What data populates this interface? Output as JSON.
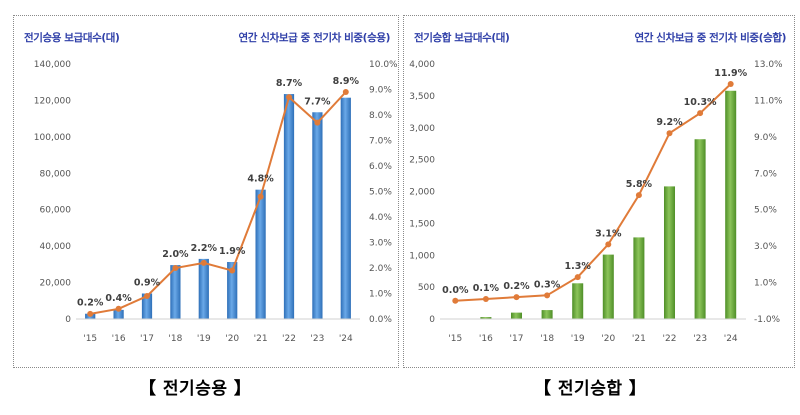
{
  "captions": {
    "left": "【 전기승용 】",
    "right": "【 전기승합 】"
  },
  "chart_data": [
    {
      "type": "bar",
      "left_title": "전기승용 보급대수(대)",
      "right_title": "연간 신차보급 중 전기차 비중(승용)",
      "categories": [
        "'15",
        "'16",
        "'17",
        "'18",
        "'19",
        "'20",
        "'21",
        "'22",
        "'23",
        "'24"
      ],
      "series": [
        {
          "name": "전기승용 보급대수(대)",
          "type": "bar",
          "axis": "left",
          "color": "#4a8fd6",
          "values": [
            2900,
            5000,
            14000,
            29600,
            33000,
            31300,
            71000,
            123500,
            113500,
            121500
          ]
        },
        {
          "name": "연간 신차보급 중 전기차 비중(승용)",
          "type": "line",
          "axis": "right",
          "color": "#e07b39",
          "values": [
            0.2,
            0.4,
            0.9,
            2.0,
            2.2,
            1.9,
            4.8,
            8.7,
            7.7,
            8.9
          ],
          "labels": [
            "0.2%",
            "0.4%",
            "0.9%",
            "2.0%",
            "2.2%",
            "1.9%",
            "4.8%",
            "8.7%",
            "7.7%",
            "8.9%"
          ]
        }
      ],
      "y_left": {
        "min": 0,
        "max": 140000,
        "ticks": [
          "0",
          "20,000",
          "40,000",
          "60,000",
          "80,000",
          "100,000",
          "120,000",
          "140,000"
        ]
      },
      "y_right": {
        "min": 0,
        "max": 10,
        "ticks": [
          "0.0%",
          "1.0%",
          "2.0%",
          "3.0%",
          "4.0%",
          "5.0%",
          "6.0%",
          "7.0%",
          "8.0%",
          "9.0%",
          "10.0%"
        ]
      },
      "grid": false
    },
    {
      "type": "bar",
      "left_title": "전기승합 보급대수(대)",
      "right_title": "연간 신차보급 중 전기차 비중(승합)",
      "categories": [
        "'15",
        "'16",
        "'17",
        "'18",
        "'19",
        "'20",
        "'21",
        "'22",
        "'23",
        "'24"
      ],
      "series": [
        {
          "name": "전기승합 보급대수(대)",
          "type": "bar",
          "axis": "left",
          "color": "#6aaa3a",
          "values": [
            5,
            30,
            100,
            140,
            560,
            1010,
            1280,
            2080,
            2820,
            3580
          ]
        },
        {
          "name": "연간 신차보급 중 전기차 비중(승합)",
          "type": "line",
          "axis": "right",
          "color": "#e07b39",
          "values": [
            0.0,
            0.1,
            0.2,
            0.3,
            1.3,
            3.1,
            5.8,
            9.2,
            10.3,
            11.9
          ],
          "labels": [
            "0.0%",
            "0.1%",
            "0.2%",
            "0.3%",
            "1.3%",
            "3.1%",
            "5.8%",
            "9.2%",
            "10.3%",
            "11.9%"
          ]
        }
      ],
      "y_left": {
        "min": 0,
        "max": 4000,
        "ticks": [
          "0",
          "500",
          "1,000",
          "1,500",
          "2,000",
          "2,500",
          "3,000",
          "3,500",
          "4,000"
        ]
      },
      "y_right": {
        "min": -1,
        "max": 13,
        "ticks": [
          "-1.0%",
          "1.0%",
          "3.0%",
          "5.0%",
          "7.0%",
          "9.0%",
          "11.0%",
          "13.0%"
        ]
      },
      "grid": false
    }
  ]
}
